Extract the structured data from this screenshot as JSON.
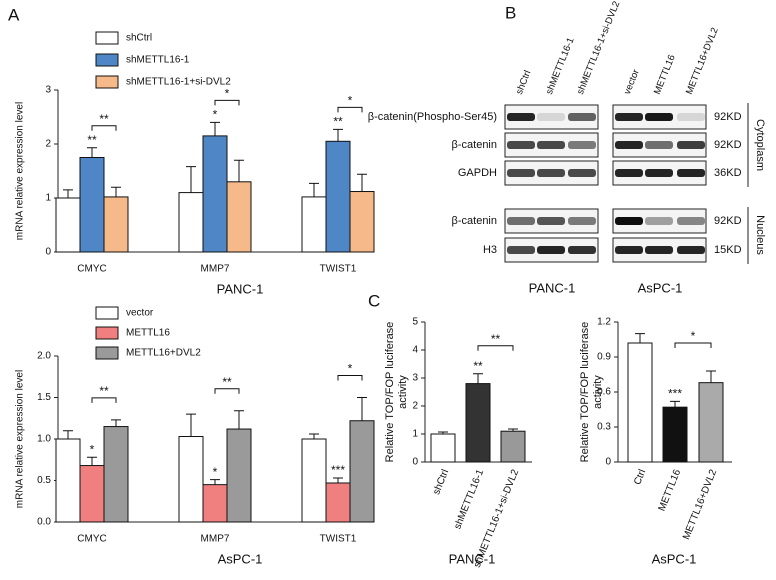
{
  "panels": [
    "A",
    "B",
    "C"
  ],
  "chart_data": [
    {
      "type": "bar",
      "ylabel": "mRNA relative expression level",
      "xlabel": "PANC-1",
      "categories": [
        "CMYC",
        "MMP7",
        "TWIST1"
      ],
      "series": [
        {
          "name": "shCtrl",
          "color": "#ffffff",
          "values": [
            1.0,
            1.1,
            1.02
          ],
          "errors": [
            0.15,
            0.48,
            0.25
          ],
          "stars": [
            null,
            null,
            null
          ]
        },
        {
          "name": "shMETTL16-1",
          "color": "#4f86c6",
          "values": [
            1.75,
            2.15,
            2.05
          ],
          "errors": [
            0.18,
            0.25,
            0.22
          ],
          "stars": [
            "**",
            "*",
            "**"
          ]
        },
        {
          "name": "shMETTL16-1+si-DVL2",
          "color": "#f5b98a",
          "values": [
            1.02,
            1.3,
            1.12
          ],
          "errors": [
            0.18,
            0.4,
            0.32
          ],
          "stars": [
            null,
            null,
            null
          ]
        }
      ],
      "comparisons": [
        "**",
        "*",
        "*"
      ],
      "ylim": [
        0,
        3
      ],
      "yticks": [
        0,
        1,
        2,
        3
      ]
    },
    {
      "type": "bar",
      "ylabel": "mRNA relative expression level",
      "xlabel": "AsPC-1",
      "categories": [
        "CMYC",
        "MMP7",
        "TWIST1"
      ],
      "series": [
        {
          "name": "vector",
          "color": "#ffffff",
          "values": [
            1.0,
            1.03,
            1.0
          ],
          "errors": [
            0.1,
            0.27,
            0.06
          ],
          "stars": [
            null,
            null,
            null
          ]
        },
        {
          "name": "METTL16",
          "color": "#f08080",
          "values": [
            0.68,
            0.45,
            0.47
          ],
          "errors": [
            0.1,
            0.06,
            0.06
          ],
          "stars": [
            "*",
            "*",
            "***"
          ]
        },
        {
          "name": "METTL16+DVL2",
          "color": "#9a9a9a",
          "values": [
            1.15,
            1.12,
            1.22
          ],
          "errors": [
            0.08,
            0.22,
            0.28
          ],
          "stars": [
            null,
            null,
            null
          ]
        }
      ],
      "comparisons": [
        "**",
        "**",
        "*"
      ],
      "ylim": [
        0,
        2
      ],
      "yticks": [
        {
          "value": 0,
          "label": "0.0"
        },
        {
          "value": 0.5,
          "label": "0.5"
        },
        {
          "value": 1,
          "label": "1.0"
        },
        {
          "value": 1.5,
          "label": "1.5"
        },
        {
          "value": 2,
          "label": "2.0"
        }
      ]
    },
    {
      "type": "bar",
      "ylabel": [
        "Relative TOP/FOP luciferase",
        "activity"
      ],
      "xlabel": "PANC-1",
      "categories": [
        "shCtrl",
        "shMETTL16-1",
        "shMETTL16-1+si-DVL2"
      ],
      "values": [
        1.0,
        2.8,
        1.1
      ],
      "errors": [
        0.07,
        0.35,
        0.08
      ],
      "colors": [
        "#ffffff",
        "#333333",
        "#999999"
      ],
      "stars": [
        null,
        "**",
        null
      ],
      "comparison": "**",
      "ylim": [
        0,
        5
      ],
      "yticks": [
        0,
        1,
        2,
        3,
        4,
        5
      ]
    },
    {
      "type": "bar",
      "ylabel": [
        "Relative TOP/FOP luciferase",
        "activity"
      ],
      "xlabel": "AsPC-1",
      "categories": [
        "Ctrl",
        "METTL16",
        "METTL16+DVL2"
      ],
      "values": [
        1.02,
        0.47,
        0.68
      ],
      "errors": [
        0.08,
        0.05,
        0.1
      ],
      "colors": [
        "#ffffff",
        "#111111",
        "#aaaaaa"
      ],
      "stars": [
        null,
        "***",
        null
      ],
      "comparison": "*",
      "ylim": [
        0,
        1.2
      ],
      "yticks": [
        0,
        0.3,
        0.6,
        0.9,
        1.2
      ]
    }
  ],
  "blot": {
    "lanes": [
      "shCtrl",
      "shMETTL16-1",
      "shMETTL16-1+si-DVL2",
      "vector",
      "METTL16",
      "METTL16+DVL2"
    ],
    "rows": [
      {
        "label": "β-catenin(Phospho-Ser45)",
        "size": "92KD"
      },
      {
        "label": "β-catenin",
        "size": "92KD"
      },
      {
        "label": "GAPDH",
        "size": "36KD"
      },
      {
        "label": "β-catenin",
        "size": "92KD"
      },
      {
        "label": "H3",
        "size": "15KD"
      }
    ],
    "fractions": [
      "Cytoplasm",
      "Nucleus"
    ],
    "cells": [
      "PANC-1",
      "AsPC-1"
    ]
  }
}
